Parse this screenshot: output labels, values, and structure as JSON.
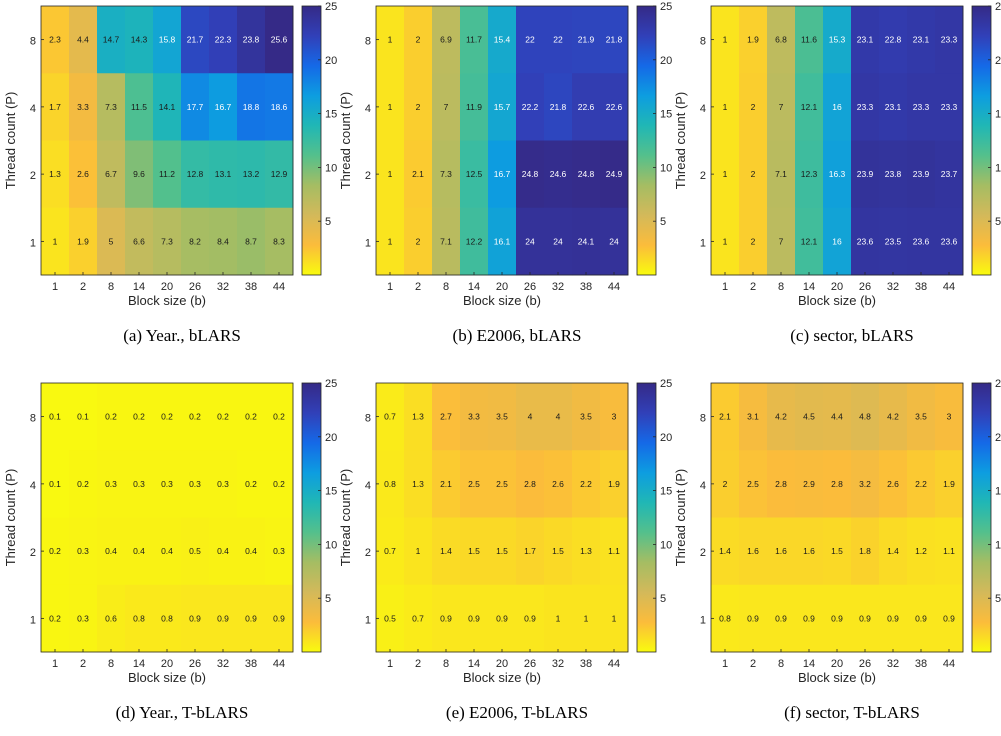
{
  "colorbar": {
    "min": 0,
    "max": 25,
    "ticks": [
      5,
      10,
      15,
      20,
      25
    ],
    "colormap": "parula-reversed",
    "stops": [
      "#f9fb0e",
      "#fbbc3b",
      "#d3b95a",
      "#a5bd63",
      "#54c08c",
      "#20b7b5",
      "#0d9de0",
      "#1569e7",
      "#3140b8",
      "#352a87"
    ]
  },
  "chart_data": [
    {
      "type": "heatmap",
      "caption": "(a)  Year., bLARS",
      "xlabel": "Block size (b)",
      "ylabel": "Thread count (P)",
      "x": [
        "1",
        "2",
        "8",
        "14",
        "20",
        "26",
        "32",
        "38",
        "44"
      ],
      "y": [
        "8",
        "4",
        "2",
        "1"
      ],
      "values": [
        [
          2.3,
          4.4,
          14.7,
          14.3,
          15.8,
          21.7,
          22.3,
          23.8,
          25.6
        ],
        [
          1.7,
          3.3,
          7.3,
          11.5,
          14.1,
          17.7,
          16.7,
          18.8,
          18.6
        ],
        [
          1.3,
          2.6,
          6.7,
          9.6,
          11.2,
          12.8,
          13.1,
          13.2,
          12.9
        ],
        [
          1,
          1.9,
          5,
          6.6,
          7.3,
          8.2,
          8.4,
          8.7,
          8.3
        ]
      ]
    },
    {
      "type": "heatmap",
      "caption": "(b)  E2006, bLARS",
      "xlabel": "Block size (b)",
      "ylabel": "Thread count (P)",
      "x": [
        "1",
        "2",
        "8",
        "14",
        "20",
        "26",
        "32",
        "38",
        "44"
      ],
      "y": [
        "8",
        "4",
        "2",
        "1"
      ],
      "values": [
        [
          1,
          2,
          6.9,
          11.7,
          15.4,
          22,
          22,
          21.9,
          21.8
        ],
        [
          1,
          2,
          7,
          11.9,
          15.7,
          22.2,
          21.8,
          22.6,
          22.6
        ],
        [
          1,
          2.1,
          7.3,
          12.5,
          16.7,
          24.8,
          24.6,
          24.8,
          24.9
        ],
        [
          1,
          2,
          7.1,
          12.2,
          16.1,
          24,
          24,
          24.1,
          24
        ]
      ]
    },
    {
      "type": "heatmap",
      "caption": "(c)  sector, bLARS",
      "xlabel": "Block size (b)",
      "ylabel": "Thread count (P)",
      "x": [
        "1",
        "2",
        "8",
        "14",
        "20",
        "26",
        "32",
        "38",
        "44"
      ],
      "y": [
        "8",
        "4",
        "2",
        "1"
      ],
      "values": [
        [
          1,
          1.9,
          6.8,
          11.6,
          15.3,
          23.1,
          22.8,
          23.1,
          23.3
        ],
        [
          1,
          2,
          7,
          12.1,
          16,
          23.3,
          23.1,
          23.3,
          23.3
        ],
        [
          1,
          2,
          7.1,
          12.3,
          16.3,
          23.9,
          23.8,
          23.9,
          23.7
        ],
        [
          1,
          2,
          7,
          12.1,
          16,
          23.6,
          23.5,
          23.6,
          23.6
        ]
      ]
    },
    {
      "type": "heatmap",
      "caption": "(d)  Year., T-bLARS",
      "xlabel": "Block size (b)",
      "ylabel": "Thread count (P)",
      "x": [
        "1",
        "2",
        "8",
        "14",
        "20",
        "26",
        "32",
        "38",
        "44"
      ],
      "y": [
        "8",
        "4",
        "2",
        "1"
      ],
      "values": [
        [
          0.1,
          0.1,
          0.2,
          0.2,
          0.2,
          0.2,
          0.2,
          0.2,
          0.2
        ],
        [
          0.1,
          0.2,
          0.3,
          0.3,
          0.3,
          0.3,
          0.3,
          0.2,
          0.2
        ],
        [
          0.2,
          0.3,
          0.4,
          0.4,
          0.4,
          0.5,
          0.4,
          0.4,
          0.3
        ],
        [
          0.2,
          0.3,
          0.6,
          0.8,
          0.8,
          0.9,
          0.9,
          0.9,
          0.9
        ]
      ]
    },
    {
      "type": "heatmap",
      "caption": "(e)  E2006, T-bLARS",
      "xlabel": "Block size (b)",
      "ylabel": "Thread count (P)",
      "x": [
        "1",
        "2",
        "8",
        "14",
        "20",
        "26",
        "32",
        "38",
        "44"
      ],
      "y": [
        "8",
        "4",
        "2",
        "1"
      ],
      "values": [
        [
          0.7,
          1.3,
          2.7,
          3.3,
          3.5,
          4,
          4,
          3.5,
          3
        ],
        [
          0.8,
          1.3,
          2.1,
          2.5,
          2.5,
          2.8,
          2.6,
          2.2,
          1.9
        ],
        [
          0.7,
          1,
          1.4,
          1.5,
          1.5,
          1.7,
          1.5,
          1.3,
          1.1
        ],
        [
          0.5,
          0.7,
          0.9,
          0.9,
          0.9,
          0.9,
          1,
          1,
          1
        ]
      ]
    },
    {
      "type": "heatmap",
      "caption": "(f)  sector, T-bLARS",
      "xlabel": "Block size (b)",
      "ylabel": "Thread count (P)",
      "x": [
        "1",
        "2",
        "8",
        "14",
        "20",
        "26",
        "32",
        "38",
        "44"
      ],
      "y": [
        "8",
        "4",
        "2",
        "1"
      ],
      "values": [
        [
          2.1,
          3.1,
          4.2,
          4.5,
          4.4,
          4.8,
          4.2,
          3.5,
          3
        ],
        [
          2,
          2.5,
          2.8,
          2.9,
          2.8,
          3.2,
          2.6,
          2.2,
          1.9
        ],
        [
          1.4,
          1.6,
          1.6,
          1.6,
          1.5,
          1.8,
          1.4,
          1.2,
          1.1
        ],
        [
          0.8,
          0.9,
          0.9,
          0.9,
          0.9,
          0.9,
          0.9,
          0.9,
          0.9
        ]
      ]
    }
  ]
}
